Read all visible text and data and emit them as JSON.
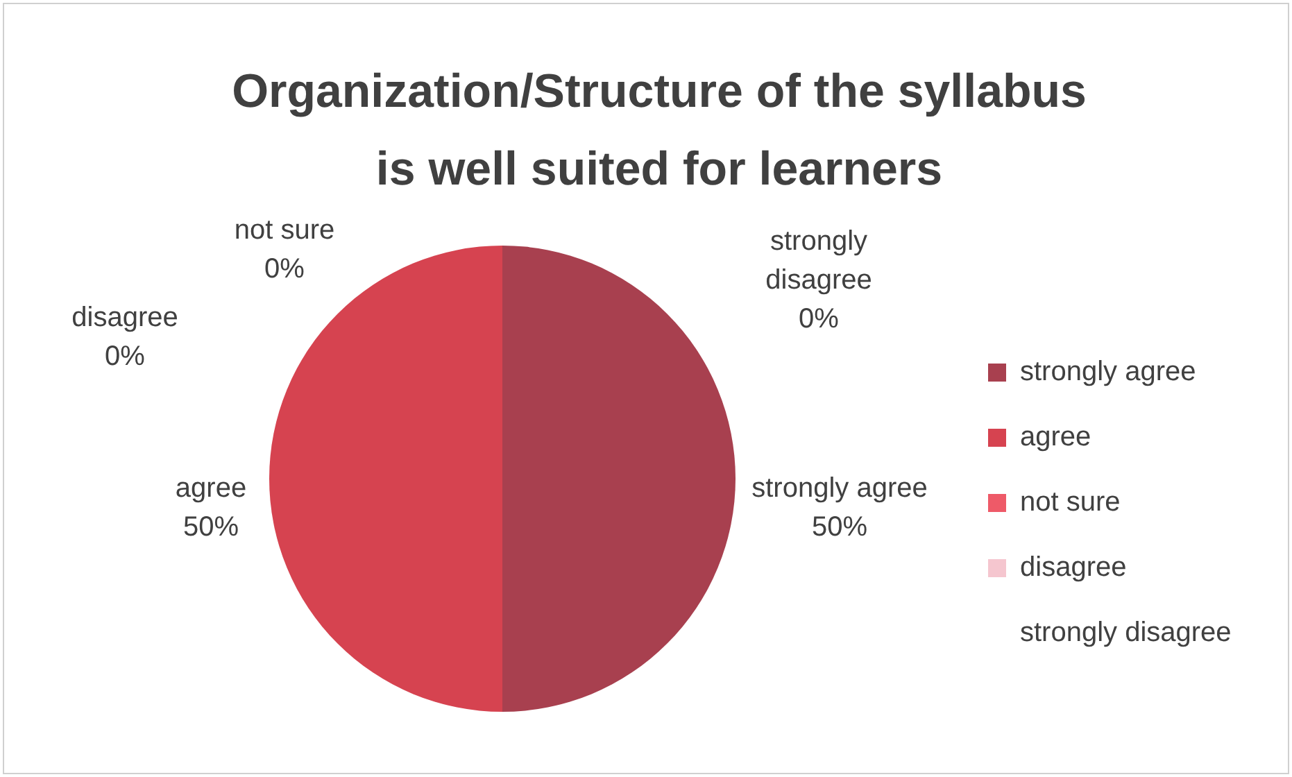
{
  "chart_data": {
    "type": "pie",
    "title": "Organization/Structure of the syllabus is well suited for learners",
    "categories": [
      "strongly agree",
      "agree",
      "not sure",
      "disagree",
      "strongly disagree"
    ],
    "values": [
      50,
      50,
      0,
      0,
      0
    ],
    "colors": [
      "#a8404f",
      "#d64350",
      "#ee5a68",
      "#f5c6cf",
      "#ffffff"
    ],
    "value_labels": [
      "50%",
      "50%",
      "0%",
      "0%",
      "0%"
    ],
    "legend": "right"
  }
}
